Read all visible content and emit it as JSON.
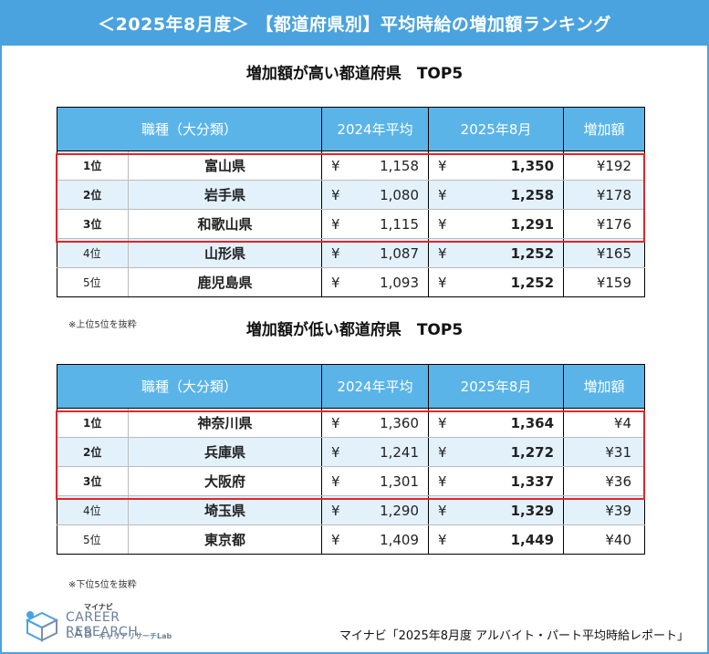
{
  "banner": {
    "title": "＜2025年8月度＞ 【都道府県別】平均時給の増加額ランキング"
  },
  "headers": {
    "category": "職種（大分類）",
    "avg2024": "2024年平均",
    "aug2025": "2025年8月",
    "increase": "増加額",
    "currency": "¥"
  },
  "high": {
    "title": "増加額が高い都道府県　TOP5",
    "note": "※上位5位を抜粋",
    "rows": [
      {
        "rank": "1位",
        "pref": "富山県",
        "avg2024": "1,158",
        "aug2025": "1,350",
        "increase": "¥192"
      },
      {
        "rank": "2位",
        "pref": "岩手県",
        "avg2024": "1,080",
        "aug2025": "1,258",
        "increase": "¥178"
      },
      {
        "rank": "3位",
        "pref": "和歌山県",
        "avg2024": "1,115",
        "aug2025": "1,291",
        "increase": "¥176"
      },
      {
        "rank": "4位",
        "pref": "山形県",
        "avg2024": "1,087",
        "aug2025": "1,252",
        "increase": "¥165"
      },
      {
        "rank": "5位",
        "pref": "鹿児島県",
        "avg2024": "1,093",
        "aug2025": "1,252",
        "increase": "¥159"
      }
    ]
  },
  "low": {
    "title": "増加額が低い都道府県　TOP5",
    "note": "※下位5位を抜粋",
    "rows": [
      {
        "rank": "1位",
        "pref": "神奈川県",
        "avg2024": "1,360",
        "aug2025": "1,364",
        "increase": "¥4"
      },
      {
        "rank": "2位",
        "pref": "兵庫県",
        "avg2024": "1,241",
        "aug2025": "1,272",
        "increase": "¥31"
      },
      {
        "rank": "3位",
        "pref": "大阪府",
        "avg2024": "1,301",
        "aug2025": "1,337",
        "increase": "¥36"
      },
      {
        "rank": "4位",
        "pref": "埼玉県",
        "avg2024": "1,290",
        "aug2025": "1,329",
        "increase": "¥39"
      },
      {
        "rank": "5位",
        "pref": "東京都",
        "avg2024": "1,409",
        "aug2025": "1,449",
        "increase": "¥40"
      }
    ]
  },
  "logo": {
    "small": "マイナビ",
    "name": "CAREER RESEARCH",
    "lab": "LAB",
    "kana": "キャリアリサーチLab",
    "icon": "cube-logo-icon"
  },
  "source": "マイナビ「2025年8月度 アルバイト・パート平均時給レポート」",
  "colors": {
    "banner": "#4aa3df",
    "header": "#5ab4e8",
    "shade": "#e3f1fb",
    "highlight": "#e3242b"
  }
}
